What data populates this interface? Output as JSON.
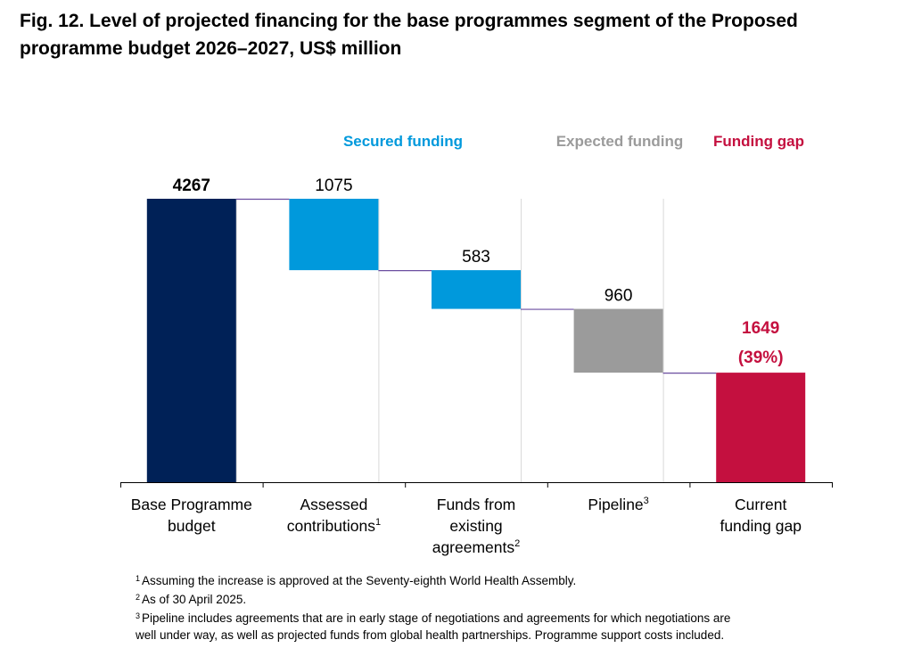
{
  "figure": {
    "title_line1": "Fig. 12. Level of projected financing for the base programmes segment of the Proposed",
    "title_line2": "programme budget 2026–2027, US$ million"
  },
  "legend": {
    "secured": "Secured funding",
    "expected": "Expected funding",
    "gap": "Funding gap"
  },
  "colors": {
    "base": "#002157",
    "secured": "#0099dc",
    "expected": "#9b9b9b",
    "gap": "#c4103f",
    "connector": "#6b4ea0",
    "axis": "#000000",
    "gridline": "#d9d9d9"
  },
  "chart_data": {
    "type": "waterfall",
    "unit": "US$ million",
    "categories": [
      {
        "label": "Base Programme budget",
        "lines": [
          "Base Programme",
          "budget"
        ],
        "sup": ""
      },
      {
        "label": "Assessed contributions",
        "lines": [
          "Assessed",
          "contributions"
        ],
        "sup": "1"
      },
      {
        "label": "Funds from existing agreements",
        "lines": [
          "Funds from",
          "existing",
          "agreements"
        ],
        "sup": "2"
      },
      {
        "label": "Pipeline",
        "lines": [
          "Pipeline"
        ],
        "sup": "3"
      },
      {
        "label": "Current funding gap",
        "lines": [
          "Current",
          "funding gap"
        ],
        "sup": ""
      }
    ],
    "bars": [
      {
        "kind": "total",
        "start": 0,
        "end": 4267,
        "label": "4267",
        "label2": "",
        "bold": true,
        "color_key": "base"
      },
      {
        "kind": "decrease",
        "start": 3192,
        "end": 4267,
        "label": "1075",
        "label2": "",
        "bold": false,
        "color_key": "secured"
      },
      {
        "kind": "decrease",
        "start": 2609,
        "end": 3192,
        "label": "583",
        "label2": "",
        "bold": false,
        "color_key": "secured"
      },
      {
        "kind": "decrease",
        "start": 1649,
        "end": 2609,
        "label": "960",
        "label2": "",
        "bold": false,
        "color_key": "expected"
      },
      {
        "kind": "total",
        "start": 0,
        "end": 1649,
        "label": "1649",
        "label2": "(39%)",
        "bold": true,
        "color_key": "gap"
      }
    ],
    "ylim": [
      0,
      4267
    ],
    "legend_placement": "top"
  },
  "footnotes": [
    {
      "num": "1",
      "lines": [
        "Assuming the increase is approved at the Seventy-eighth World Health Assembly."
      ]
    },
    {
      "num": "2",
      "lines": [
        "As of 30 April 2025."
      ]
    },
    {
      "num": "3",
      "lines": [
        "Pipeline includes agreements that are in early stage of negotiations and agreements for which negotiations are",
        "well under way, as well as projected funds from global health partnerships. Programme support costs included."
      ]
    }
  ]
}
